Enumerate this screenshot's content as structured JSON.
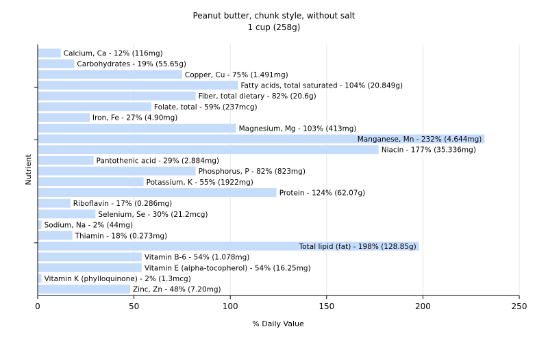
{
  "chart_data": {
    "type": "bar",
    "orientation": "horizontal",
    "title": "Peanut butter, chunk style, without salt",
    "subtitle": "1 cup (258g)",
    "xlabel": "% Daily Value",
    "ylabel": "Nutrient",
    "xlim": [
      0,
      250
    ],
    "xticks": [
      0,
      50,
      100,
      150,
      200,
      250
    ],
    "grid": true,
    "bar_color": "#c6dcfb",
    "categories": [
      "Calcium, Ca",
      "Carbohydrates",
      "Copper, Cu",
      "Fatty acids, total saturated",
      "Fiber, total dietary",
      "Folate, total",
      "Iron, Fe",
      "Magnesium, Mg",
      "Manganese, Mn",
      "Niacin",
      "Pantothenic acid",
      "Phosphorus, P",
      "Potassium, K",
      "Protein",
      "Riboflavin",
      "Selenium, Se",
      "Sodium, Na",
      "Thiamin",
      "Total lipid (fat)",
      "Vitamin B-6",
      "Vitamin E (alpha-tocopherol)",
      "Vitamin K (phylloquinone)",
      "Zinc, Zn"
    ],
    "values": [
      12,
      19,
      75,
      104,
      82,
      59,
      27,
      103,
      232,
      177,
      29,
      82,
      55,
      124,
      17,
      30,
      2,
      18,
      198,
      54,
      54,
      2,
      48
    ],
    "labels": [
      "Calcium, Ca - 12% (116mg)",
      "Carbohydrates - 19% (55.65g)",
      "Copper, Cu - 75% (1.491mg)",
      "Fatty acids, total saturated - 104% (20.849g)",
      "Fiber, total dietary - 82% (20.6g)",
      "Folate, total - 59% (237mcg)",
      "Iron, Fe - 27% (4.90mg)",
      "Magnesium, Mg - 103% (413mg)",
      "Manganese, Mn - 232% (4.644mg)",
      "Niacin - 177% (35.336mg)",
      "Pantothenic acid - 29% (2.884mg)",
      "Phosphorus, P - 82% (823mg)",
      "Potassium, K - 55% (1922mg)",
      "Protein - 124% (62.07g)",
      "Riboflavin - 17% (0.286mg)",
      "Selenium, Se - 30% (21.2mcg)",
      "Sodium, Na - 2% (44mg)",
      "Thiamin - 18% (0.273mg)",
      "Total lipid (fat) - 198% (128.85g)",
      "Vitamin B-6 - 54% (1.078mg)",
      "Vitamin E (alpha-tocopherol) - 54% (16.25mg)",
      "Vitamin K (phylloquinone) - 2% (1.3mcg)",
      "Zinc, Zn - 48% (7.20mg)"
    ]
  }
}
